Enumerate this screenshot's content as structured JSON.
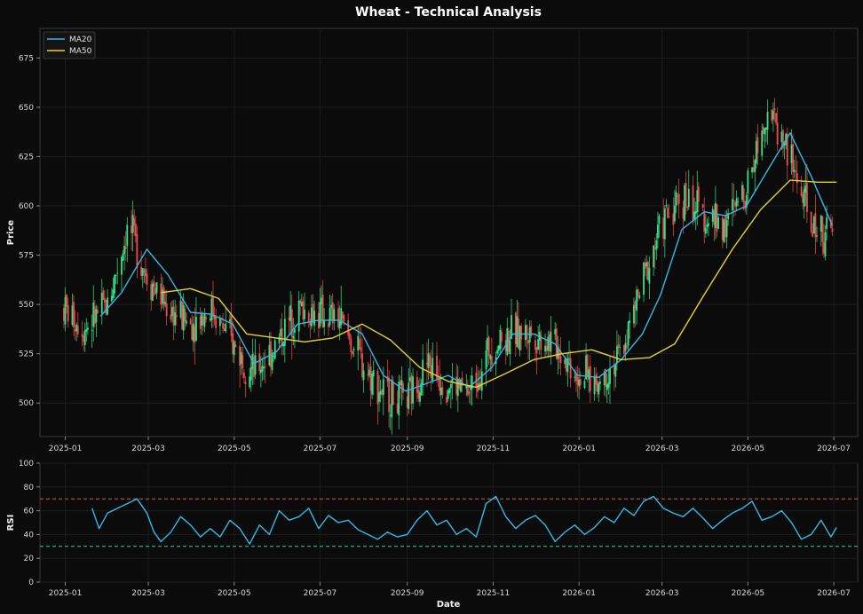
{
  "chart_data": [
    {
      "type": "candlestick",
      "title": "Wheat - Technical Analysis",
      "xlabel": "",
      "ylabel": "Price",
      "ylim": [
        483,
        690
      ],
      "xlim": [
        "2024-12-14",
        "2026-07-18"
      ],
      "x_ticks": [
        "2025-01",
        "2025-03",
        "2025-05",
        "2025-07",
        "2025-09",
        "2025-11",
        "2026-01",
        "2026-03",
        "2026-05",
        "2026-07"
      ],
      "y_ticks": [
        500,
        525,
        550,
        575,
        600,
        625,
        650,
        675
      ],
      "grid": true,
      "legend": "top-left",
      "candle_colors": {
        "up": "#2fe38a",
        "down": "#ef4b4b"
      },
      "close_series": {
        "dates": [
          "2024-12-31",
          "2025-01-15",
          "2025-01-31",
          "2025-02-15",
          "2025-02-28",
          "2025-03-15",
          "2025-03-31",
          "2025-04-15",
          "2025-04-30",
          "2025-05-15",
          "2025-05-31",
          "2025-06-15",
          "2025-06-30",
          "2025-07-15",
          "2025-07-31",
          "2025-08-15",
          "2025-08-31",
          "2025-09-15",
          "2025-09-30",
          "2025-10-15",
          "2025-10-31",
          "2025-11-15",
          "2025-11-30",
          "2025-12-15",
          "2025-12-31",
          "2026-01-15",
          "2026-01-31",
          "2026-02-15",
          "2026-02-28",
          "2026-03-15",
          "2026-03-31",
          "2026-04-15",
          "2026-04-30",
          "2026-05-15",
          "2026-05-31",
          "2026-06-15",
          "2026-06-30"
        ],
        "values": [
          548,
          538,
          550,
          590,
          565,
          548,
          540,
          548,
          530,
          515,
          530,
          548,
          545,
          542,
          520,
          505,
          500,
          520,
          510,
          505,
          530,
          535,
          535,
          530,
          515,
          510,
          525,
          560,
          590,
          605,
          595,
          590,
          610,
          650,
          625,
          590,
          585
        ]
      },
      "series": [
        {
          "name": "MA20",
          "color": "#35b8e6",
          "dates": [
            "2025-01-26",
            "2025-02-10",
            "2025-02-28",
            "2025-03-15",
            "2025-03-31",
            "2025-04-15",
            "2025-04-30",
            "2025-05-15",
            "2025-05-31",
            "2025-06-15",
            "2025-06-30",
            "2025-07-15",
            "2025-07-31",
            "2025-08-15",
            "2025-08-31",
            "2025-09-15",
            "2025-09-30",
            "2025-10-15",
            "2025-10-31",
            "2025-11-15",
            "2025-11-30",
            "2025-12-15",
            "2025-12-31",
            "2026-01-15",
            "2026-01-31",
            "2026-02-15",
            "2026-02-28",
            "2026-03-15",
            "2026-03-31",
            "2026-04-15",
            "2026-04-30",
            "2026-05-15",
            "2026-05-31",
            "2026-06-15",
            "2026-06-30"
          ],
          "values": [
            544,
            556,
            578,
            565,
            546,
            545,
            540,
            520,
            526,
            540,
            542,
            542,
            535,
            514,
            506,
            510,
            514,
            508,
            518,
            535,
            535,
            530,
            514,
            513,
            522,
            535,
            555,
            588,
            597,
            595,
            600,
            618,
            637,
            615,
            590
          ]
        },
        {
          "name": "MA50",
          "color": "#e6d22f",
          "dates": [
            "2025-03-10",
            "2025-03-31",
            "2025-04-20",
            "2025-05-10",
            "2025-05-31",
            "2025-06-20",
            "2025-07-10",
            "2025-07-31",
            "2025-08-20",
            "2025-09-10",
            "2025-09-30",
            "2025-10-20",
            "2025-11-10",
            "2025-11-30",
            "2025-12-20",
            "2026-01-10",
            "2026-01-31",
            "2026-02-20",
            "2026-03-10",
            "2026-03-31",
            "2026-04-20",
            "2026-05-10",
            "2026-05-31",
            "2026-06-20",
            "2026-07-03"
          ],
          "values": [
            556,
            558,
            553,
            535,
            533,
            531,
            533,
            540,
            532,
            518,
            511,
            508,
            515,
            522,
            525,
            527,
            522,
            523,
            530,
            555,
            578,
            598,
            613,
            612,
            612
          ]
        }
      ]
    },
    {
      "type": "line",
      "title": "",
      "xlabel": "Date",
      "ylabel": "RSI",
      "ylim": [
        0,
        100
      ],
      "y_ticks": [
        0,
        20,
        40,
        60,
        80,
        100
      ],
      "x_ticks": [
        "2025-01",
        "2025-03",
        "2025-05",
        "2025-07",
        "2025-09",
        "2025-11",
        "2026-01",
        "2026-03",
        "2026-05",
        "2026-07"
      ],
      "reference_lines": [
        {
          "value": 70,
          "color": "#e05555",
          "style": "dashed"
        },
        {
          "value": 30,
          "color": "#2fd38a",
          "style": "dashed"
        }
      ],
      "series": [
        {
          "name": "RSI",
          "color": "#35b8e6",
          "dates": [
            "2025-01-20",
            "2025-01-25",
            "2025-01-31",
            "2025-02-07",
            "2025-02-14",
            "2025-02-21",
            "2025-02-28",
            "2025-03-05",
            "2025-03-10",
            "2025-03-17",
            "2025-03-24",
            "2025-03-31",
            "2025-04-07",
            "2025-04-14",
            "2025-04-21",
            "2025-04-28",
            "2025-05-05",
            "2025-05-12",
            "2025-05-19",
            "2025-05-26",
            "2025-06-02",
            "2025-06-09",
            "2025-06-16",
            "2025-06-23",
            "2025-06-30",
            "2025-07-07",
            "2025-07-14",
            "2025-07-21",
            "2025-07-28",
            "2025-08-04",
            "2025-08-11",
            "2025-08-18",
            "2025-08-25",
            "2025-09-01",
            "2025-09-08",
            "2025-09-15",
            "2025-09-22",
            "2025-09-29",
            "2025-10-06",
            "2025-10-13",
            "2025-10-20",
            "2025-10-27",
            "2025-11-03",
            "2025-11-10",
            "2025-11-17",
            "2025-11-24",
            "2025-12-01",
            "2025-12-08",
            "2025-12-15",
            "2025-12-22",
            "2025-12-29",
            "2026-01-05",
            "2026-01-12",
            "2026-01-19",
            "2026-01-26",
            "2026-02-02",
            "2026-02-09",
            "2026-02-16",
            "2026-02-23",
            "2026-03-02",
            "2026-03-09",
            "2026-03-16",
            "2026-03-23",
            "2026-03-30",
            "2026-04-06",
            "2026-04-13",
            "2026-04-20",
            "2026-04-27",
            "2026-05-04",
            "2026-05-11",
            "2026-05-18",
            "2026-05-25",
            "2026-06-01",
            "2026-06-08",
            "2026-06-15",
            "2026-06-22",
            "2026-06-29",
            "2026-07-03"
          ],
          "values": [
            62,
            45,
            58,
            62,
            66,
            70,
            58,
            42,
            34,
            42,
            55,
            48,
            38,
            45,
            38,
            52,
            45,
            32,
            48,
            40,
            60,
            52,
            55,
            62,
            45,
            56,
            50,
            52,
            44,
            40,
            36,
            42,
            38,
            40,
            52,
            60,
            48,
            52,
            40,
            45,
            38,
            66,
            72,
            55,
            45,
            52,
            56,
            48,
            34,
            42,
            48,
            40,
            46,
            55,
            50,
            62,
            56,
            68,
            72,
            62,
            58,
            55,
            62,
            54,
            45,
            52,
            58,
            62,
            68,
            52,
            55,
            60,
            50,
            36,
            40,
            52,
            38,
            46
          ]
        }
      ]
    }
  ]
}
